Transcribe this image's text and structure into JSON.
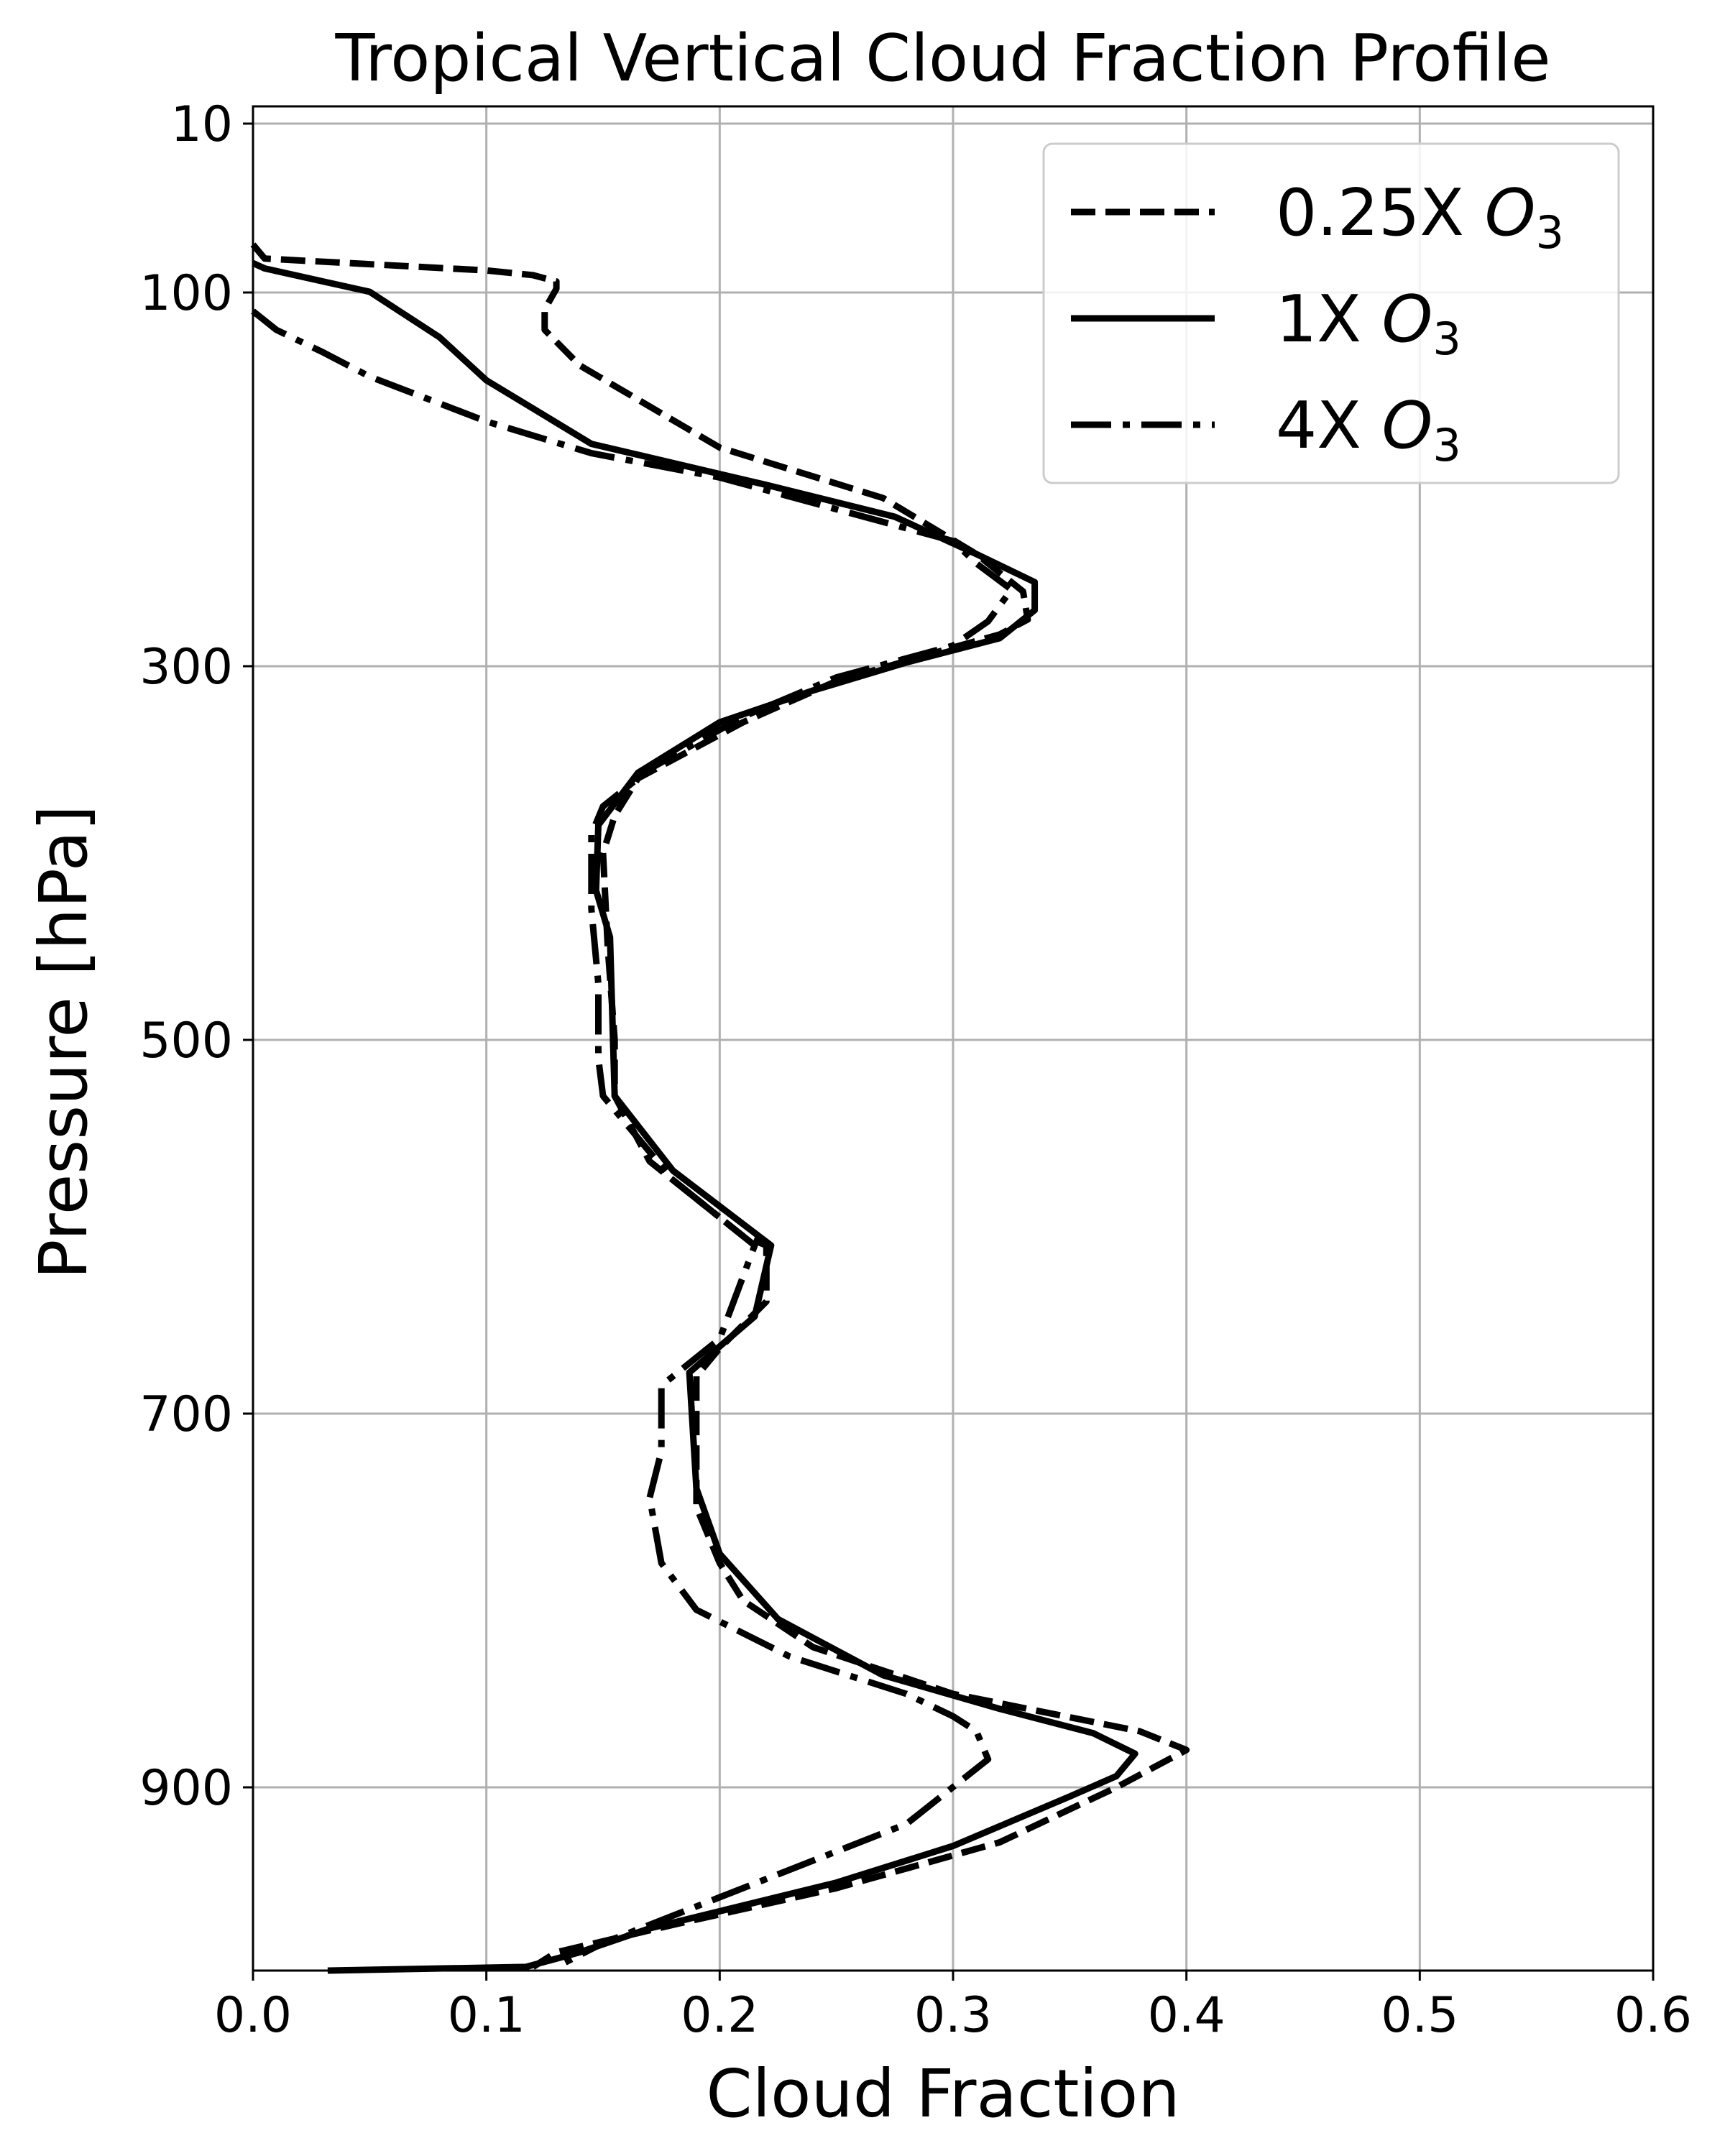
{
  "chart_data": {
    "type": "line",
    "title": "Tropical Vertical Cloud Fraction Profile",
    "xlabel": "Cloud Fraction",
    "ylabel": "Pressure [hPa]",
    "xlim": [
      0.0,
      0.6
    ],
    "ylim": [
      1000,
      10
    ],
    "y_inverted": true,
    "grid": true,
    "legend_position": "top-right",
    "x_ticks": [
      "0.0",
      "0.1",
      "0.2",
      "0.3",
      "0.4",
      "0.5",
      "0.6"
    ],
    "y_ticks": [
      "10",
      "100",
      "300",
      "500",
      "700",
      "900"
    ],
    "series": [
      {
        "name": "0.25X O3",
        "legend_base": "0.25X ",
        "legend_symbol": "O",
        "legend_subscript": "3",
        "style": "dashed",
        "color": "#000000",
        "points": [
          {
            "x": 0.0,
            "y": 52
          },
          {
            "x": 0.005,
            "y": 63
          },
          {
            "x": 0.05,
            "y": 68
          },
          {
            "x": 0.1,
            "y": 74
          },
          {
            "x": 0.12,
            "y": 79
          },
          {
            "x": 0.13,
            "y": 86
          },
          {
            "x": 0.13,
            "y": 95
          },
          {
            "x": 0.125,
            "y": 109
          },
          {
            "x": 0.125,
            "y": 120
          },
          {
            "x": 0.14,
            "y": 139
          },
          {
            "x": 0.2,
            "y": 183
          },
          {
            "x": 0.27,
            "y": 210
          },
          {
            "x": 0.31,
            "y": 240
          },
          {
            "x": 0.33,
            "y": 260
          },
          {
            "x": 0.332,
            "y": 275
          },
          {
            "x": 0.32,
            "y": 283
          },
          {
            "x": 0.3,
            "y": 290
          },
          {
            "x": 0.25,
            "y": 308
          },
          {
            "x": 0.21,
            "y": 330
          },
          {
            "x": 0.165,
            "y": 360
          },
          {
            "x": 0.155,
            "y": 380
          },
          {
            "x": 0.15,
            "y": 400
          },
          {
            "x": 0.152,
            "y": 450
          },
          {
            "x": 0.155,
            "y": 500
          },
          {
            "x": 0.155,
            "y": 530
          },
          {
            "x": 0.17,
            "y": 565
          },
          {
            "x": 0.21,
            "y": 605
          },
          {
            "x": 0.22,
            "y": 610
          },
          {
            "x": 0.22,
            "y": 640
          },
          {
            "x": 0.2,
            "y": 665
          },
          {
            "x": 0.19,
            "y": 680
          },
          {
            "x": 0.19,
            "y": 750
          },
          {
            "x": 0.2,
            "y": 780
          },
          {
            "x": 0.21,
            "y": 800
          },
          {
            "x": 0.24,
            "y": 825
          },
          {
            "x": 0.3,
            "y": 850
          },
          {
            "x": 0.38,
            "y": 870
          },
          {
            "x": 0.4,
            "y": 880
          },
          {
            "x": 0.37,
            "y": 900
          },
          {
            "x": 0.32,
            "y": 930
          },
          {
            "x": 0.25,
            "y": 955
          },
          {
            "x": 0.18,
            "y": 975
          },
          {
            "x": 0.13,
            "y": 990
          },
          {
            "x": 0.12,
            "y": 998
          }
        ]
      },
      {
        "name": "1X O3",
        "legend_base": "1X ",
        "legend_symbol": "O",
        "legend_subscript": "3",
        "style": "solid",
        "color": "#000000",
        "points": [
          {
            "x": 0.0,
            "y": 67
          },
          {
            "x": 0.005,
            "y": 72
          },
          {
            "x": 0.03,
            "y": 86
          },
          {
            "x": 0.05,
            "y": 99
          },
          {
            "x": 0.08,
            "y": 124
          },
          {
            "x": 0.1,
            "y": 147
          },
          {
            "x": 0.145,
            "y": 181
          },
          {
            "x": 0.22,
            "y": 203
          },
          {
            "x": 0.275,
            "y": 220
          },
          {
            "x": 0.31,
            "y": 240
          },
          {
            "x": 0.335,
            "y": 255
          },
          {
            "x": 0.335,
            "y": 270
          },
          {
            "x": 0.32,
            "y": 285
          },
          {
            "x": 0.28,
            "y": 298
          },
          {
            "x": 0.24,
            "y": 313
          },
          {
            "x": 0.2,
            "y": 330
          },
          {
            "x": 0.165,
            "y": 357
          },
          {
            "x": 0.148,
            "y": 385
          },
          {
            "x": 0.147,
            "y": 420
          },
          {
            "x": 0.153,
            "y": 445
          },
          {
            "x": 0.155,
            "y": 530
          },
          {
            "x": 0.18,
            "y": 570
          },
          {
            "x": 0.222,
            "y": 610
          },
          {
            "x": 0.215,
            "y": 648
          },
          {
            "x": 0.187,
            "y": 678
          },
          {
            "x": 0.19,
            "y": 740
          },
          {
            "x": 0.2,
            "y": 775
          },
          {
            "x": 0.225,
            "y": 810
          },
          {
            "x": 0.27,
            "y": 840
          },
          {
            "x": 0.32,
            "y": 858
          },
          {
            "x": 0.36,
            "y": 871
          },
          {
            "x": 0.378,
            "y": 882
          },
          {
            "x": 0.37,
            "y": 894
          },
          {
            "x": 0.35,
            "y": 905
          },
          {
            "x": 0.3,
            "y": 932
          },
          {
            "x": 0.25,
            "y": 952
          },
          {
            "x": 0.17,
            "y": 977
          },
          {
            "x": 0.14,
            "y": 990
          },
          {
            "x": 0.117,
            "y": 998
          },
          {
            "x": 0.032,
            "y": 1000
          }
        ]
      },
      {
        "name": "4X O3",
        "legend_base": "4X ",
        "legend_symbol": "O",
        "legend_subscript": "3",
        "style": "dashdot",
        "color": "#000000",
        "points": [
          {
            "x": 0.0,
            "y": 110
          },
          {
            "x": 0.01,
            "y": 120
          },
          {
            "x": 0.03,
            "y": 132
          },
          {
            "x": 0.05,
            "y": 145
          },
          {
            "x": 0.1,
            "y": 169
          },
          {
            "x": 0.145,
            "y": 186
          },
          {
            "x": 0.2,
            "y": 199
          },
          {
            "x": 0.25,
            "y": 216
          },
          {
            "x": 0.3,
            "y": 233
          },
          {
            "x": 0.31,
            "y": 245
          },
          {
            "x": 0.325,
            "y": 259
          },
          {
            "x": 0.315,
            "y": 276
          },
          {
            "x": 0.3,
            "y": 289
          },
          {
            "x": 0.25,
            "y": 306
          },
          {
            "x": 0.21,
            "y": 327
          },
          {
            "x": 0.17,
            "y": 355
          },
          {
            "x": 0.15,
            "y": 375
          },
          {
            "x": 0.145,
            "y": 390
          },
          {
            "x": 0.145,
            "y": 430
          },
          {
            "x": 0.148,
            "y": 470
          },
          {
            "x": 0.148,
            "y": 510
          },
          {
            "x": 0.15,
            "y": 530
          },
          {
            "x": 0.18,
            "y": 575
          },
          {
            "x": 0.215,
            "y": 610
          },
          {
            "x": 0.2,
            "y": 660
          },
          {
            "x": 0.175,
            "y": 685
          },
          {
            "x": 0.175,
            "y": 720
          },
          {
            "x": 0.17,
            "y": 745
          },
          {
            "x": 0.175,
            "y": 780
          },
          {
            "x": 0.19,
            "y": 805
          },
          {
            "x": 0.23,
            "y": 830
          },
          {
            "x": 0.28,
            "y": 850
          },
          {
            "x": 0.3,
            "y": 862
          },
          {
            "x": 0.31,
            "y": 870
          },
          {
            "x": 0.315,
            "y": 885
          },
          {
            "x": 0.28,
            "y": 920
          },
          {
            "x": 0.2,
            "y": 960
          },
          {
            "x": 0.15,
            "y": 985
          },
          {
            "x": 0.13,
            "y": 998
          }
        ]
      }
    ]
  }
}
